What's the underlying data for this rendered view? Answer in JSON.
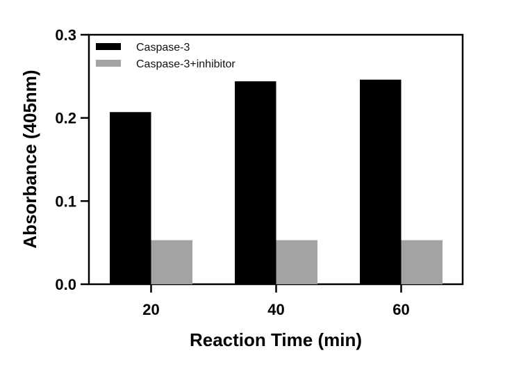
{
  "chart_data": {
    "type": "bar",
    "title": "",
    "xlabel": "Reaction Time (min)",
    "ylabel": "Absorbance (405nm)",
    "categories": [
      "20",
      "40",
      "60"
    ],
    "series": [
      {
        "name": "Caspase-3",
        "values": [
          0.207,
          0.244,
          0.246
        ],
        "color": "#000000"
      },
      {
        "name": "Caspase-3+inhibitor",
        "values": [
          0.053,
          0.053,
          0.053
        ],
        "color": "#a3a3a3"
      }
    ],
    "ylim": [
      0,
      0.3
    ],
    "yticks": [
      "0.0",
      "0.1",
      "0.2",
      "0.3"
    ],
    "ytick_values": [
      0,
      0.1,
      0.2,
      0.3
    ],
    "grid": false,
    "legend_position": "top-left"
  }
}
